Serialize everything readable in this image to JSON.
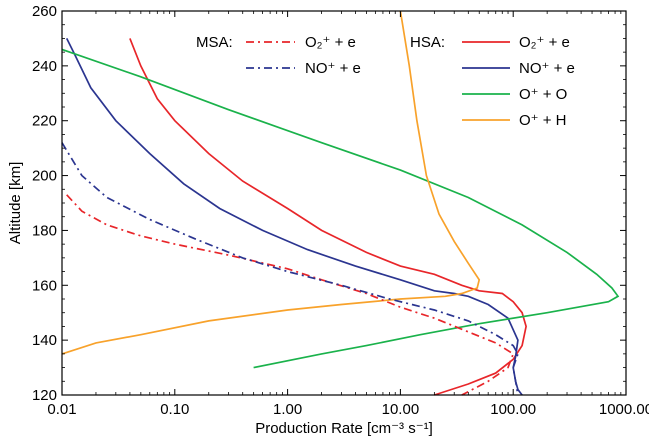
{
  "chart_data": {
    "type": "line",
    "xlabel": "Production Rate [cm⁻³ s⁻¹]",
    "ylabel": "Altitude [km]",
    "xscale": "log",
    "xlim": [
      0.01,
      1000
    ],
    "ylim": [
      120,
      260
    ],
    "xticks": [
      0.01,
      0.1,
      1,
      10,
      100,
      1000
    ],
    "xtick_labels": [
      "0.01",
      "0.10",
      "1.00",
      "10.00",
      "100.00",
      "1000.00"
    ],
    "yticks": [
      120,
      140,
      160,
      180,
      200,
      220,
      240,
      260
    ],
    "ytick_labels": [
      "120",
      "140",
      "160",
      "180",
      "200",
      "220",
      "240",
      "260"
    ],
    "grid": false,
    "legend": {
      "groups": [
        {
          "title": "MSA:",
          "entries": [
            "O₂⁺ + e",
            "NO⁺ + e"
          ]
        },
        {
          "title": "HSA:",
          "entries": [
            "O₂⁺ + e",
            "NO⁺ + e",
            "O⁺ + O",
            "O⁺ + H"
          ]
        }
      ],
      "placement": "top-right"
    },
    "series": [
      {
        "name": "O₂⁺ + e",
        "group": "HSA",
        "color": "#e8262a",
        "dash": "solid",
        "points": [
          [
            0.04,
            250
          ],
          [
            0.05,
            240
          ],
          [
            0.07,
            228
          ],
          [
            0.1,
            220
          ],
          [
            0.2,
            208
          ],
          [
            0.4,
            198
          ],
          [
            1,
            188
          ],
          [
            2,
            180
          ],
          [
            5,
            172
          ],
          [
            10,
            167
          ],
          [
            20,
            164
          ],
          [
            35,
            160
          ],
          [
            50,
            158
          ],
          [
            80,
            157
          ],
          [
            100,
            154
          ],
          [
            120,
            150
          ],
          [
            130,
            145
          ],
          [
            120,
            138
          ],
          [
            100,
            133
          ],
          [
            70,
            128
          ],
          [
            40,
            124
          ],
          [
            20,
            120
          ]
        ]
      },
      {
        "name": "NO⁺ + e",
        "group": "HSA",
        "color": "#2b3590",
        "dash": "solid",
        "points": [
          [
            0.011,
            250
          ],
          [
            0.013,
            244
          ],
          [
            0.018,
            232
          ],
          [
            0.03,
            220
          ],
          [
            0.06,
            208
          ],
          [
            0.12,
            197
          ],
          [
            0.25,
            188
          ],
          [
            0.6,
            180
          ],
          [
            1.5,
            173
          ],
          [
            4,
            167
          ],
          [
            10,
            162
          ],
          [
            20,
            158
          ],
          [
            30,
            157
          ],
          [
            40,
            156
          ],
          [
            60,
            153
          ],
          [
            90,
            148
          ],
          [
            110,
            140
          ],
          [
            105,
            134
          ],
          [
            100,
            130
          ],
          [
            105,
            125
          ],
          [
            110,
            122
          ],
          [
            120,
            120
          ]
        ]
      },
      {
        "name": "O⁺ + O",
        "group": "HSA",
        "color": "#1ab24b",
        "dash": "solid",
        "points": [
          [
            0.01,
            246
          ],
          [
            0.05,
            236
          ],
          [
            0.3,
            224
          ],
          [
            2,
            212
          ],
          [
            10,
            202
          ],
          [
            40,
            192
          ],
          [
            120,
            182
          ],
          [
            300,
            172
          ],
          [
            550,
            164
          ],
          [
            750,
            159
          ],
          [
            850,
            156
          ],
          [
            700,
            154
          ],
          [
            200,
            150
          ],
          [
            50,
            146
          ],
          [
            15,
            142
          ],
          [
            5,
            138
          ],
          [
            2,
            135
          ],
          [
            0.5,
            130
          ]
        ]
      },
      {
        "name": "O⁺ + H",
        "group": "HSA",
        "color": "#f8a22b",
        "dash": "solid",
        "points": [
          [
            10,
            260
          ],
          [
            12,
            240
          ],
          [
            14,
            220
          ],
          [
            17,
            200
          ],
          [
            22,
            186
          ],
          [
            30,
            176
          ],
          [
            40,
            168
          ],
          [
            50,
            162
          ],
          [
            48,
            159
          ],
          [
            35,
            157
          ],
          [
            25,
            156
          ],
          [
            10,
            155
          ],
          [
            3,
            153
          ],
          [
            1,
            151
          ],
          [
            0.2,
            147
          ],
          [
            0.05,
            142
          ],
          [
            0.02,
            139
          ],
          [
            0.01,
            135
          ]
        ]
      },
      {
        "name": "O₂⁺ + e",
        "group": "MSA",
        "color": "#e8262a",
        "dash": "dashdot",
        "points": [
          [
            0.011,
            193
          ],
          [
            0.015,
            187
          ],
          [
            0.025,
            182
          ],
          [
            0.05,
            178
          ],
          [
            0.1,
            175
          ],
          [
            0.3,
            171
          ],
          [
            1,
            166
          ],
          [
            2,
            162
          ],
          [
            5,
            157
          ],
          [
            10,
            152
          ],
          [
            20,
            148
          ],
          [
            40,
            143
          ],
          [
            70,
            139
          ],
          [
            100,
            135
          ],
          [
            90,
            130
          ],
          [
            60,
            125
          ],
          [
            35,
            120
          ]
        ]
      },
      {
        "name": "NO⁺ + e",
        "group": "MSA",
        "color": "#2b3590",
        "dash": "dashdot",
        "points": [
          [
            0.01,
            212
          ],
          [
            0.015,
            200
          ],
          [
            0.025,
            192
          ],
          [
            0.06,
            184
          ],
          [
            0.15,
            177
          ],
          [
            0.4,
            170
          ],
          [
            1,
            165
          ],
          [
            3,
            160
          ],
          [
            8,
            155
          ],
          [
            20,
            151
          ],
          [
            40,
            147
          ],
          [
            70,
            142
          ],
          [
            100,
            138
          ],
          [
            110,
            135
          ],
          [
            100,
            130
          ],
          [
            105,
            125
          ],
          [
            110,
            120
          ]
        ]
      }
    ]
  }
}
